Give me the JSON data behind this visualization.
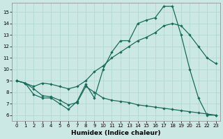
{
  "xlabel": "Humidex (Indice chaleur)",
  "background_color": "#cce8e4",
  "grid_color": "#b0d8d0",
  "line_color": "#1a6b5a",
  "x_ticks": [
    0,
    1,
    2,
    3,
    4,
    5,
    6,
    7,
    8,
    9,
    10,
    11,
    12,
    13,
    14,
    15,
    16,
    17,
    18,
    19,
    20,
    21,
    22,
    23
  ],
  "y_ticks": [
    6,
    7,
    8,
    9,
    10,
    11,
    12,
    13,
    14,
    15
  ],
  "ylim": [
    5.5,
    15.8
  ],
  "xlim": [
    -0.5,
    23.5
  ],
  "line1_x": [
    0,
    1,
    2,
    3,
    4,
    5,
    6,
    7,
    8,
    9,
    10,
    11,
    12,
    13,
    14,
    15,
    16,
    17,
    18,
    19,
    20,
    21,
    22,
    23
  ],
  "line1_y": [
    9.0,
    8.8,
    7.8,
    7.5,
    7.5,
    7.0,
    6.5,
    7.2,
    8.7,
    7.5,
    10.0,
    11.5,
    12.5,
    12.5,
    14.0,
    14.3,
    14.5,
    15.5,
    15.5,
    13.0,
    10.0,
    7.5,
    6.0,
    6.0
  ],
  "line2_x": [
    0,
    1,
    2,
    3,
    4,
    5,
    6,
    7,
    8,
    9,
    10,
    11,
    12,
    13,
    14,
    15,
    16,
    17,
    18,
    19,
    20,
    21,
    22,
    23
  ],
  "line2_y": [
    9.0,
    8.8,
    8.5,
    8.8,
    8.7,
    8.5,
    8.3,
    8.5,
    9.0,
    9.8,
    10.3,
    11.0,
    11.5,
    12.0,
    12.5,
    12.8,
    13.2,
    13.8,
    14.0,
    13.8,
    13.0,
    12.0,
    11.0,
    10.5
  ],
  "line3_x": [
    0,
    1,
    2,
    3,
    4,
    5,
    6,
    7,
    8,
    9,
    10,
    11,
    12,
    13,
    14,
    15,
    16,
    17,
    18,
    19,
    20,
    21,
    22,
    23
  ],
  "line3_y": [
    9.0,
    8.8,
    8.3,
    7.7,
    7.6,
    7.3,
    6.9,
    7.1,
    8.5,
    8.0,
    7.5,
    7.3,
    7.2,
    7.1,
    6.9,
    6.8,
    6.7,
    6.6,
    6.5,
    6.4,
    6.3,
    6.2,
    6.1,
    6.0
  ]
}
